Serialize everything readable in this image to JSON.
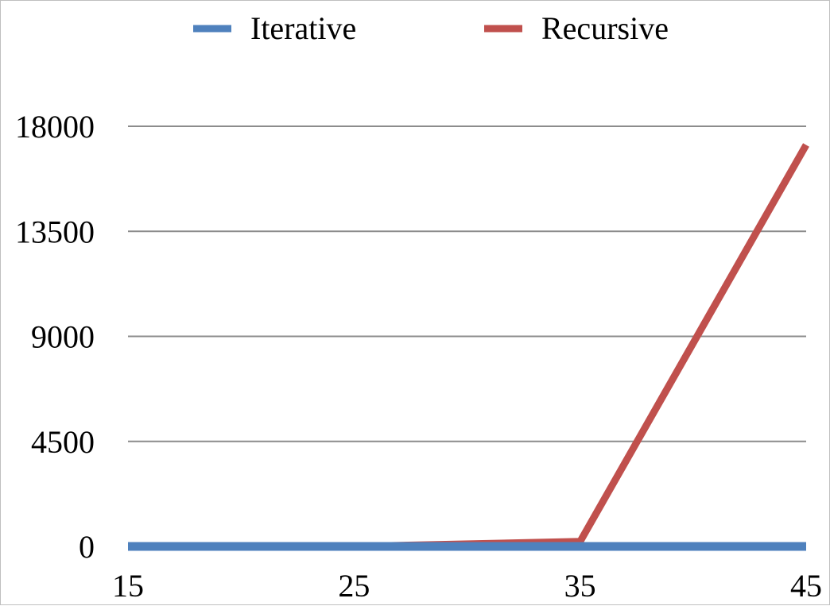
{
  "chart_data": {
    "type": "line",
    "title": "",
    "xlabel": "",
    "ylabel": "",
    "x": [
      15,
      25,
      35,
      45
    ],
    "x_tick_labels": [
      "15",
      "25",
      "35",
      "45"
    ],
    "y_ticks": [
      0,
      4500,
      9000,
      13500,
      18000
    ],
    "y_tick_labels": [
      "0",
      "4500",
      "9000",
      "13500",
      "18000"
    ],
    "ylim": [
      0,
      18000
    ],
    "xlim": [
      15,
      45
    ],
    "grid": "horizontal",
    "legend_position": "top",
    "series": [
      {
        "name": "Iterative",
        "color": "#4f81bd",
        "values": [
          0,
          0,
          0,
          0
        ]
      },
      {
        "name": "Recursive",
        "color": "#c0504d",
        "values": [
          0,
          0,
          210,
          17200
        ]
      }
    ]
  }
}
